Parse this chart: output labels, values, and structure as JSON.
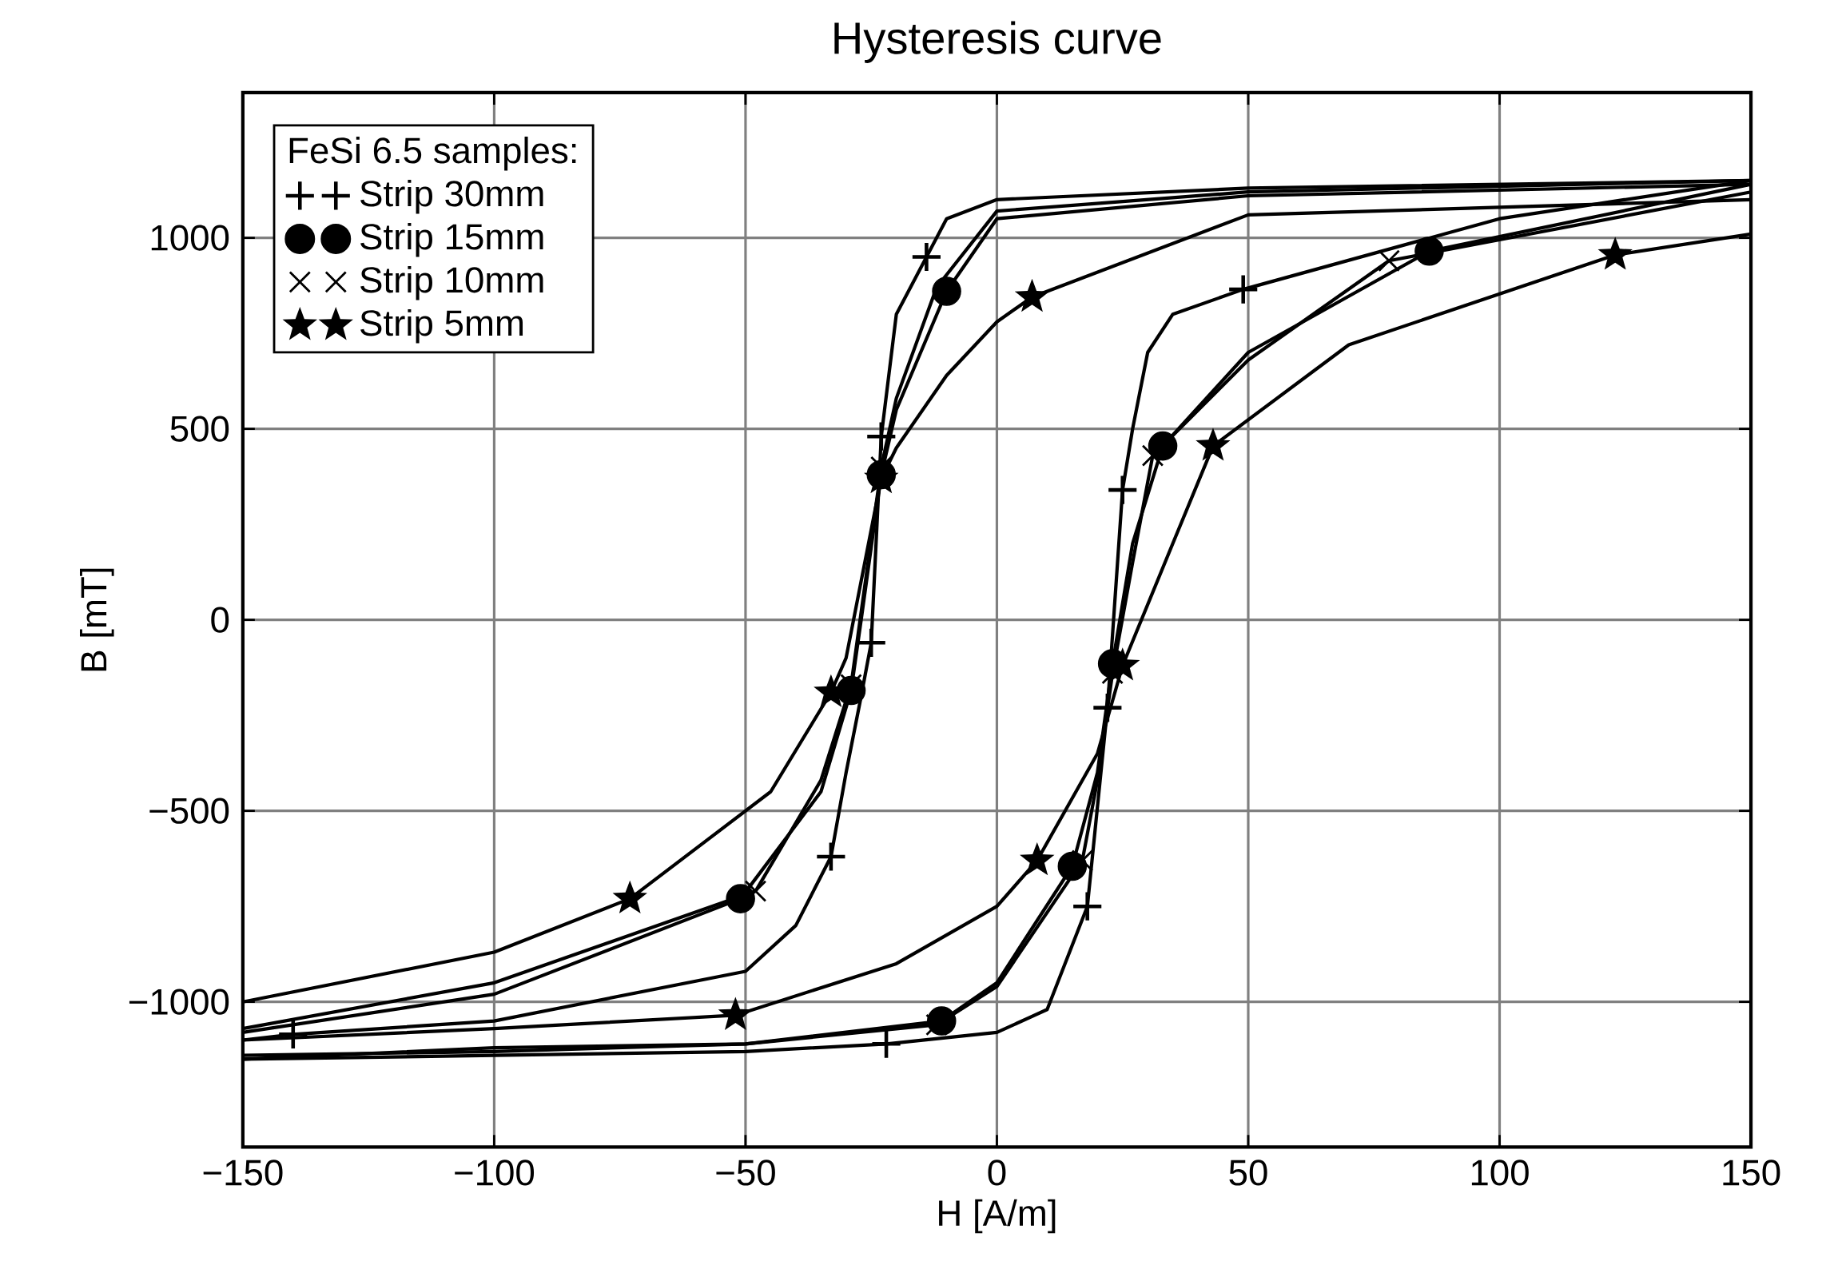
{
  "chart_data": {
    "type": "line",
    "title": "Hysteresis curve",
    "xlabel": "H [A/m]",
    "ylabel": "B [mT]",
    "legend_title": "FeSi 6.5 samples:",
    "legend": "top left",
    "grid": true,
    "xlim": [
      -150,
      150
    ],
    "ylim": [
      -1380,
      1380
    ],
    "xticks": [
      {
        "value": -150,
        "label": "−150"
      },
      {
        "value": -100,
        "label": "−100"
      },
      {
        "value": -50,
        "label": "−50"
      },
      0,
      50,
      100,
      150
    ],
    "yticks": [
      {
        "value": -1000,
        "label": "−1000"
      },
      {
        "value": -500,
        "label": "−500"
      },
      0,
      500,
      1000
    ],
    "series": [
      {
        "color": "#000000",
        "x": [
          -150,
          -140,
          -100,
          -50,
          -40,
          -33,
          -30,
          -27,
          -25,
          -23,
          -20,
          -14,
          -10,
          0,
          50,
          100,
          150
        ],
        "values": [
          -1100,
          -1085,
          -1050,
          -920,
          -800,
          -620,
          -400,
          -200,
          -60,
          480,
          800,
          950,
          1050,
          1100,
          1130,
          1140,
          1150
        ]
      },
      {
        "color": "#000000",
        "x": [
          -150,
          -100,
          -50,
          -22,
          0,
          10,
          18,
          22,
          25,
          27,
          30,
          35,
          49,
          100,
          150
        ],
        "values": [
          -1150,
          -1140,
          -1130,
          -1110,
          -1080,
          -1020,
          -750,
          -230,
          340,
          500,
          700,
          800,
          865,
          1050,
          1150
        ]
      },
      {
        "color": "#000000",
        "x": [
          -150,
          -100,
          -51,
          -35,
          -29,
          -27,
          -23,
          -20,
          -10,
          0,
          50,
          150
        ],
        "values": [
          -1080,
          -980,
          -730,
          -450,
          -185,
          0,
          380,
          550,
          860,
          1050,
          1110,
          1140
        ]
      },
      {
        "color": "#000000",
        "x": [
          -150,
          -100,
          -50,
          -11,
          0,
          15,
          20,
          23,
          27,
          33,
          50,
          86,
          150
        ],
        "values": [
          -1140,
          -1130,
          -1110,
          -1050,
          -950,
          -645,
          -400,
          -115,
          200,
          455,
          700,
          965,
          1140
        ]
      },
      {
        "color": "#000000",
        "x": [
          -150,
          -100,
          -48,
          -35,
          -29,
          -27,
          -23,
          -20,
          -12,
          0,
          50,
          150
        ],
        "values": [
          -1070,
          -950,
          -710,
          -420,
          -170,
          20,
          400,
          580,
          870,
          1070,
          1120,
          1150
        ]
      },
      {
        "color": "#000000",
        "x": [
          -150,
          -100,
          -50,
          -12,
          0,
          17,
          20,
          23,
          27,
          31,
          50,
          78,
          150
        ],
        "values": [
          -1150,
          -1120,
          -1110,
          -1060,
          -960,
          -630,
          -420,
          -140,
          150,
          430,
          680,
          940,
          1120
        ]
      },
      {
        "color": "#000000",
        "x": [
          -150,
          -100,
          -73,
          -45,
          -33,
          -30,
          -23,
          -20,
          -10,
          0,
          7,
          50,
          150
        ],
        "values": [
          -1000,
          -870,
          -730,
          -450,
          -190,
          -100,
          370,
          450,
          640,
          780,
          845,
          1060,
          1100
        ]
      },
      {
        "color": "#000000",
        "x": [
          -150,
          -100,
          -52,
          -20,
          0,
          8,
          20,
          25,
          35,
          43,
          70,
          123,
          150
        ],
        "values": [
          -1100,
          -1070,
          -1035,
          -900,
          -750,
          -630,
          -350,
          -120,
          200,
          455,
          720,
          955,
          1010
        ]
      },
      {
        "type": "scatter",
        "name": "Strip 30mm",
        "color": "#000000",
        "marker": "cross",
        "x": [
          -14,
          -23,
          -25,
          -33,
          -140,
          49,
          25,
          22,
          18,
          -22
        ],
        "values": [
          950,
          480,
          -60,
          -620,
          -1085,
          865,
          340,
          -230,
          -750,
          -1110
        ]
      },
      {
        "type": "scatter",
        "name": "Strip 15mm",
        "color": "#000000",
        "marker": "circle",
        "x": [
          -10,
          -23,
          -29,
          -51,
          -11,
          15,
          23,
          33,
          86
        ],
        "values": [
          860,
          380,
          -185,
          -730,
          -1050,
          -645,
          -115,
          455,
          965
        ]
      },
      {
        "type": "scatter",
        "name": "Strip 10mm",
        "color": "#000000",
        "marker": "x",
        "x": [
          -23,
          -29,
          -48,
          -12,
          17,
          23,
          31,
          78
        ],
        "values": [
          400,
          -170,
          -710,
          -1060,
          -630,
          -140,
          430,
          940
        ]
      },
      {
        "type": "scatter",
        "name": "Strip 5mm",
        "color": "#000000",
        "marker": "star",
        "x": [
          7,
          -23,
          -33,
          -73,
          -52,
          8,
          25,
          43,
          123
        ],
        "values": [
          845,
          370,
          -190,
          -730,
          -1035,
          -630,
          -120,
          455,
          955
        ]
      }
    ]
  }
}
